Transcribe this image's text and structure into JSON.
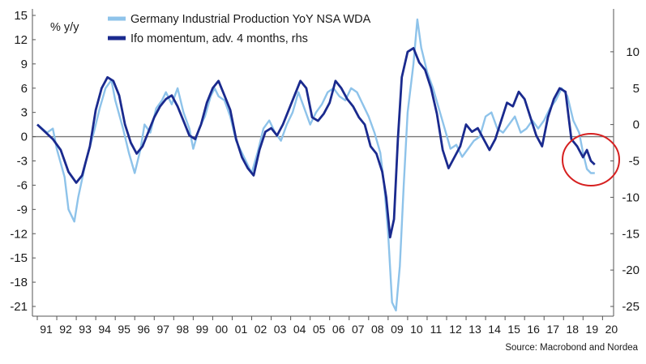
{
  "chart_data": {
    "type": "line",
    "ylabel": "% y/y",
    "source": "Source: Macrobond and Nordea",
    "ylim_left": [
      -21,
      15
    ],
    "ylim_right": [
      -25,
      15
    ],
    "yticks_left": [
      "15",
      "12",
      "9",
      "6",
      "3",
      "0",
      "-3",
      "-6",
      "-9",
      "-12",
      "-15",
      "-18",
      "-21"
    ],
    "yticks_right": [
      "10",
      "5",
      "0",
      "-5",
      "-10",
      "-15",
      "-20",
      "-25"
    ],
    "x_tick_labels": [
      "91",
      "92",
      "93",
      "94",
      "95",
      "96",
      "97",
      "98",
      "99",
      "00",
      "01",
      "02",
      "03",
      "04",
      "05",
      "06",
      "07",
      "08",
      "09",
      "10",
      "11",
      "12",
      "13",
      "14",
      "15",
      "16",
      "17",
      "18",
      "19",
      "20"
    ],
    "x_range": [
      1991.0,
      2020.4
    ],
    "grid": false,
    "legend_position": "top-left",
    "annotations": [
      "red circle highlighting 2019 lows"
    ],
    "series": [
      {
        "name": "Germany Industrial Production YoY NSA WDA",
        "axis": "left",
        "color": "#8ec3ea",
        "x": [
          1991.0,
          1991.5,
          1991.8,
          1992.0,
          1992.4,
          1992.6,
          1992.9,
          1993.1,
          1993.5,
          1993.9,
          1994.2,
          1994.5,
          1994.8,
          1995.0,
          1995.4,
          1995.7,
          1996.0,
          1996.3,
          1996.5,
          1996.8,
          1997.1,
          1997.4,
          1997.6,
          1997.9,
          1998.2,
          1998.5,
          1998.8,
          1999.0,
          1999.3,
          1999.6,
          1999.9,
          2000.1,
          2000.3,
          2000.6,
          2000.9,
          2001.2,
          2001.5,
          2001.8,
          2002.0,
          2002.3,
          2002.6,
          2002.9,
          2003.2,
          2003.5,
          2003.8,
          2004.1,
          2004.4,
          2004.7,
          2005.0,
          2005.3,
          2005.6,
          2005.9,
          2006.2,
          2006.5,
          2006.8,
          2007.1,
          2007.4,
          2007.7,
          2008.0,
          2008.3,
          2008.6,
          2008.8,
          2009.0,
          2009.2,
          2009.4,
          2009.6,
          2009.8,
          2010.0,
          2010.3,
          2010.5,
          2010.7,
          2011.0,
          2011.3,
          2011.6,
          2011.9,
          2012.2,
          2012.5,
          2012.8,
          2013.1,
          2013.4,
          2013.7,
          2014.0,
          2014.3,
          2014.6,
          2014.9,
          2015.2,
          2015.5,
          2015.8,
          2016.1,
          2016.4,
          2016.7,
          2017.0,
          2017.3,
          2017.6,
          2017.9,
          2018.2,
          2018.5,
          2018.8,
          2019.0,
          2019.2,
          2019.4,
          2019.6
        ],
        "values": [
          1.5,
          0.5,
          1.0,
          -1.5,
          -5.0,
          -9.0,
          -10.5,
          -7.5,
          -3.0,
          0.5,
          3.5,
          6.0,
          7.0,
          4.5,
          1.0,
          -2.0,
          -4.5,
          -1.5,
          1.5,
          0.5,
          3.5,
          4.5,
          5.5,
          4.0,
          6.0,
          3.0,
          1.0,
          -1.5,
          1.0,
          2.5,
          5.0,
          6.0,
          5.0,
          4.5,
          2.5,
          -0.5,
          -2.0,
          -3.5,
          -4.5,
          -2.0,
          1.0,
          2.0,
          0.5,
          -0.5,
          1.5,
          3.0,
          5.5,
          3.5,
          1.5,
          3.0,
          4.0,
          5.5,
          6.0,
          5.0,
          4.5,
          6.0,
          5.5,
          4.0,
          2.5,
          0.5,
          -2.0,
          -6.0,
          -12.0,
          -20.5,
          -21.5,
          -16.0,
          -6.0,
          3.0,
          9.0,
          14.5,
          11.0,
          8.0,
          6.0,
          3.5,
          1.0,
          -1.5,
          -1.0,
          -2.5,
          -1.5,
          -0.5,
          0.0,
          2.5,
          3.0,
          1.0,
          0.5,
          1.5,
          2.5,
          0.5,
          1.0,
          2.0,
          1.0,
          2.0,
          3.5,
          4.5,
          6.0,
          5.0,
          2.0,
          0.5,
          -2.0,
          -4.0,
          -4.5,
          -4.5
        ]
      },
      {
        "name": "Ifo momentum, adv. 4 months, rhs",
        "axis": "right",
        "color": "#1a2a8e",
        "x": [
          1991.0,
          1991.4,
          1991.8,
          1992.2,
          1992.6,
          1993.0,
          1993.3,
          1993.7,
          1994.0,
          1994.3,
          1994.6,
          1994.9,
          1995.2,
          1995.5,
          1995.8,
          1996.1,
          1996.4,
          1996.7,
          1997.0,
          1997.3,
          1997.6,
          1997.9,
          1998.2,
          1998.5,
          1998.8,
          1999.1,
          1999.4,
          1999.7,
          2000.0,
          2000.3,
          2000.6,
          2000.9,
          2001.2,
          2001.5,
          2001.8,
          2002.1,
          2002.4,
          2002.7,
          2003.0,
          2003.3,
          2003.6,
          2003.9,
          2004.2,
          2004.5,
          2004.8,
          2005.1,
          2005.4,
          2005.7,
          2006.0,
          2006.3,
          2006.6,
          2006.9,
          2007.2,
          2007.5,
          2007.8,
          2008.1,
          2008.4,
          2008.7,
          2008.9,
          2009.1,
          2009.3,
          2009.5,
          2009.7,
          2010.0,
          2010.3,
          2010.6,
          2010.9,
          2011.2,
          2011.5,
          2011.8,
          2012.1,
          2012.4,
          2012.7,
          2013.0,
          2013.3,
          2013.6,
          2013.9,
          2014.2,
          2014.5,
          2014.8,
          2015.1,
          2015.4,
          2015.7,
          2016.0,
          2016.3,
          2016.6,
          2016.9,
          2017.2,
          2017.5,
          2017.8,
          2018.1,
          2018.4,
          2018.7,
          2019.0,
          2019.2,
          2019.4,
          2019.6
        ],
        "values": [
          0.0,
          -1.0,
          -2.0,
          -3.5,
          -6.5,
          -8.0,
          -7.0,
          -3.0,
          2.0,
          5.0,
          6.5,
          6.0,
          4.0,
          0.0,
          -2.5,
          -4.0,
          -3.0,
          -1.0,
          1.0,
          2.5,
          3.5,
          4.0,
          2.5,
          0.5,
          -1.5,
          -2.0,
          0.0,
          3.0,
          5.0,
          6.0,
          4.0,
          2.0,
          -2.0,
          -4.5,
          -6.0,
          -7.0,
          -3.5,
          -1.0,
          -0.5,
          -1.5,
          0.0,
          2.0,
          4.0,
          6.0,
          5.0,
          1.0,
          0.5,
          1.5,
          3.0,
          6.0,
          5.0,
          3.5,
          2.5,
          1.0,
          0.0,
          -3.0,
          -4.0,
          -6.5,
          -10.0,
          -15.5,
          -13.0,
          -2.0,
          6.5,
          10.0,
          10.5,
          8.5,
          7.5,
          5.0,
          1.5,
          -3.5,
          -6.0,
          -4.5,
          -3.0,
          0.0,
          -1.0,
          -0.5,
          -2.0,
          -3.5,
          -2.0,
          0.5,
          3.0,
          2.5,
          4.5,
          3.5,
          1.0,
          -1.5,
          -3.0,
          1.0,
          3.5,
          5.0,
          4.5,
          -2.0,
          -3.0,
          -4.5,
          -3.5,
          -5.0,
          -5.5
        ]
      }
    ]
  }
}
